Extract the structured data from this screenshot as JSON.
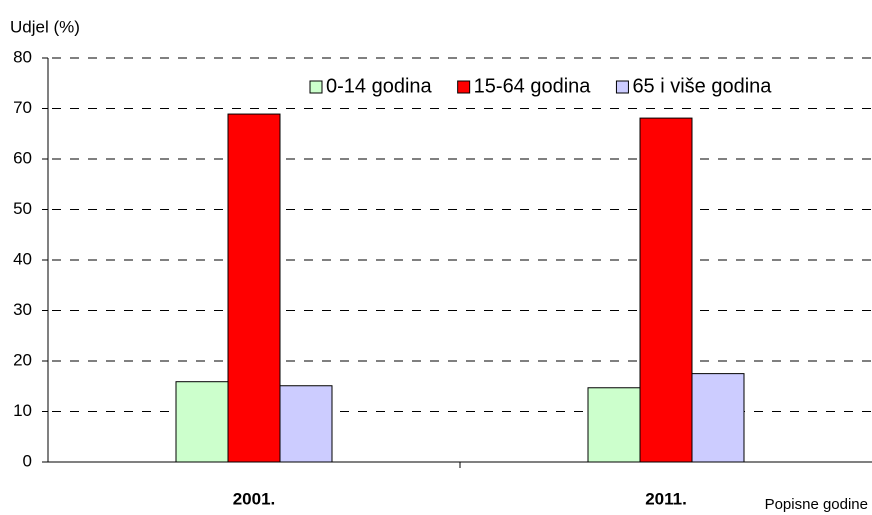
{
  "chart_data": {
    "type": "bar",
    "y_label": "Udjel (%)",
    "x_label": "Popisne godine",
    "categories": [
      "2001.",
      "2011."
    ],
    "series": [
      {
        "name": "0-14 godina",
        "color": "#ccffcc",
        "values": [
          15.9,
          14.7
        ]
      },
      {
        "name": "15-64 godina",
        "color": "#ff0000",
        "values": [
          68.9,
          68.1
        ]
      },
      {
        "name": "65 i više godina",
        "color": "#ccccff",
        "values": [
          15.1,
          17.5
        ]
      }
    ],
    "ylim": [
      0,
      80
    ],
    "yticks": [
      0,
      10,
      20,
      30,
      40,
      50,
      60,
      70,
      80
    ],
    "grid": true,
    "legend": "top-right"
  }
}
